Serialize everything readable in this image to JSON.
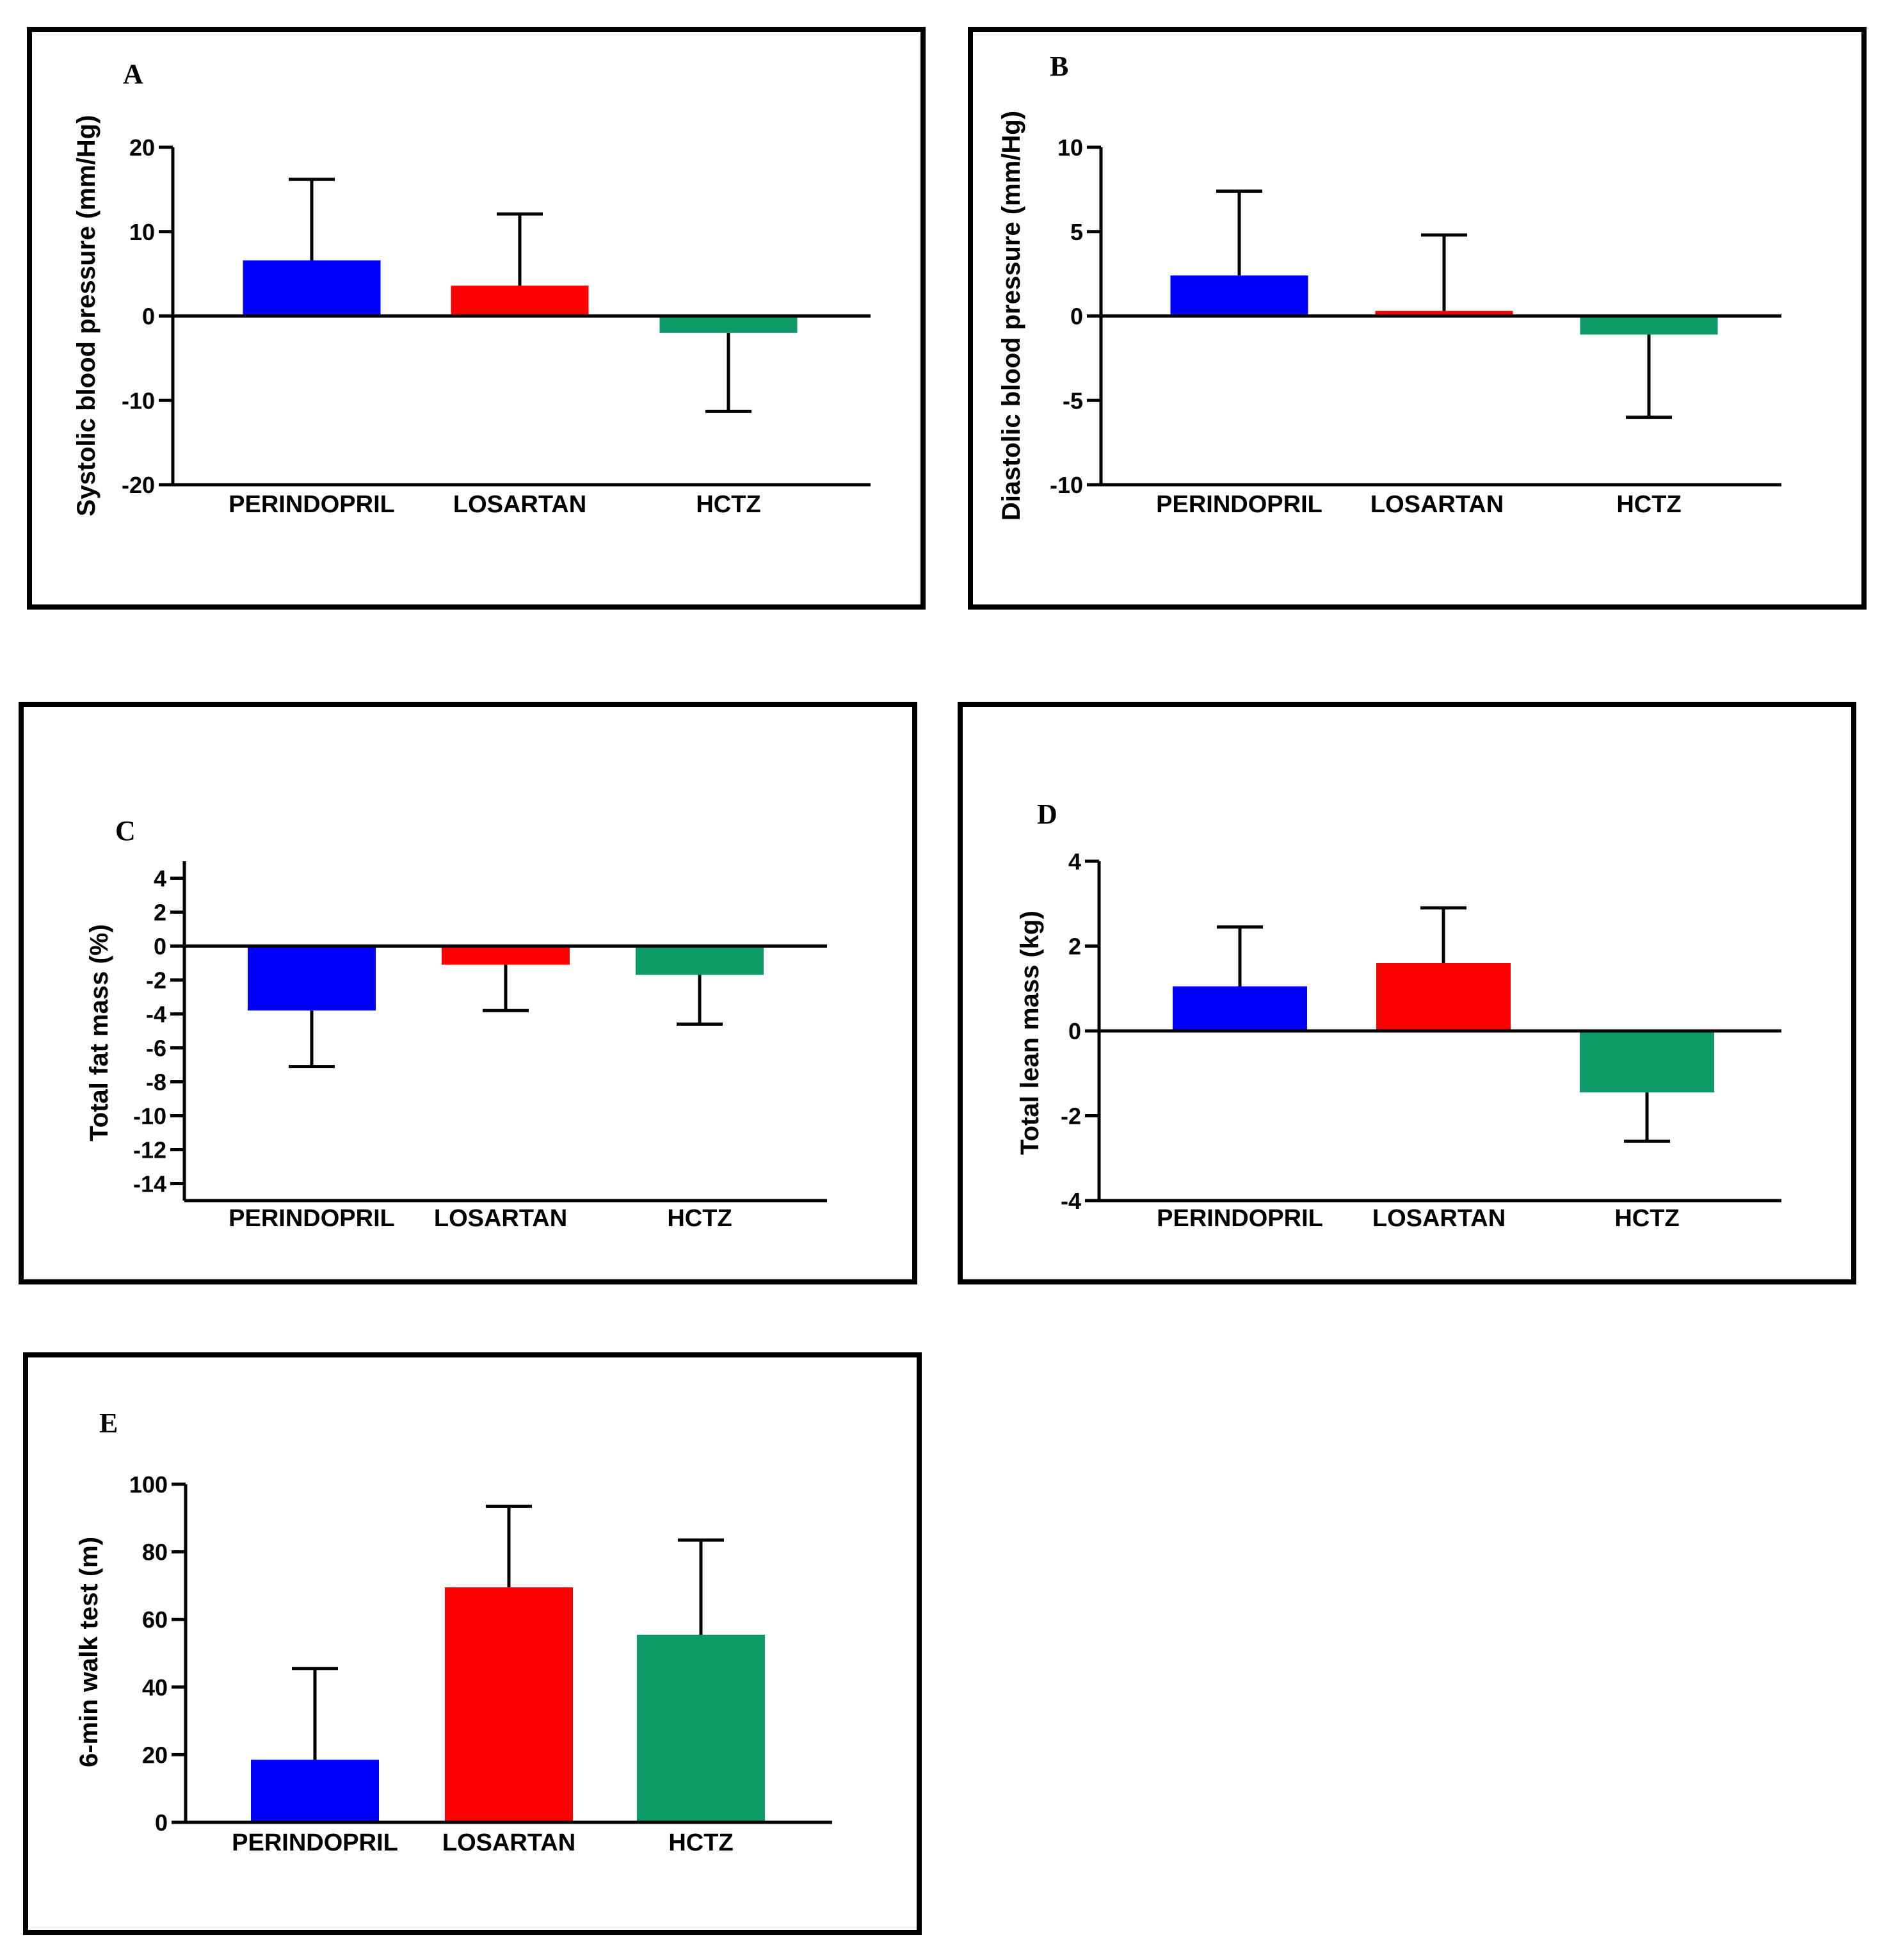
{
  "figure": {
    "colors": {
      "PERINDOPRIL": "#0000ff",
      "LOSARTAN": "#ff0000",
      "HCTZ": "#0c9a66",
      "axis": "#000000",
      "frame": "#000000"
    }
  },
  "chart_data": [
    {
      "panel": "A",
      "type": "bar",
      "ylabel": "Systolic blood pressure (mm/Hg)",
      "categories": [
        "PERINDOPRIL",
        "LOSARTAN",
        "HCTZ"
      ],
      "values": [
        6.6,
        3.6,
        -2.0
      ],
      "error_bars": [
        9.6,
        8.5,
        9.3
      ],
      "error_direction": "away from zero",
      "ylim": [
        -20,
        20
      ],
      "yticks": [
        -20,
        -10,
        0,
        10,
        20
      ],
      "ytick_labels": [
        "-20",
        "-10",
        "0",
        "10",
        "20"
      ]
    },
    {
      "panel": "B",
      "type": "bar",
      "ylabel": "Diastolic blood pressure (mm/Hg)",
      "categories": [
        "PERINDOPRIL",
        "LOSARTAN",
        "HCTZ"
      ],
      "values": [
        2.4,
        0.3,
        -1.1
      ],
      "error_bars": [
        5.0,
        4.5,
        4.9
      ],
      "error_direction": "away from zero",
      "ylim": [
        -10,
        10
      ],
      "yticks": [
        -10,
        -5,
        0,
        5,
        10
      ],
      "ytick_labels": [
        "-10",
        "-5",
        "0",
        "5",
        "10"
      ]
    },
    {
      "panel": "C",
      "type": "bar",
      "ylabel": "Total fat mass (%)",
      "categories": [
        "PERINDOPRIL",
        "LOSARTAN",
        "HCTZ"
      ],
      "values": [
        -3.8,
        -1.1,
        -1.7
      ],
      "error_bars": [
        3.3,
        2.7,
        2.9
      ],
      "error_direction": "away from zero",
      "ylim": [
        -15,
        5
      ],
      "yticks": [
        -14,
        -12,
        -10,
        -8,
        -6,
        -4,
        -2,
        0,
        2,
        4
      ],
      "ytick_labels": [
        "-14",
        "-12",
        "-10",
        "-8",
        "-6",
        "-4",
        "-2",
        "0",
        "2",
        "4"
      ]
    },
    {
      "panel": "D",
      "type": "bar",
      "ylabel": "Total lean mass (kg)",
      "categories": [
        "PERINDOPRIL",
        "LOSARTAN",
        "HCTZ"
      ],
      "values": [
        1.05,
        1.6,
        -1.45
      ],
      "error_bars": [
        1.4,
        1.3,
        1.15
      ],
      "error_direction": "away from zero",
      "ylim": [
        -4,
        4
      ],
      "yticks": [
        -4,
        -2,
        0,
        2,
        4
      ],
      "ytick_labels": [
        "-4",
        "-2",
        "0",
        "2",
        "4"
      ]
    },
    {
      "panel": "E",
      "type": "bar",
      "ylabel": "6-min walk test (m)",
      "categories": [
        "PERINDOPRIL",
        "LOSARTAN",
        "HCTZ"
      ],
      "values": [
        18.5,
        69.5,
        55.5
      ],
      "error_bars": [
        27,
        24,
        28
      ],
      "error_direction": "away from zero",
      "ylim": [
        0,
        100
      ],
      "yticks": [
        0,
        20,
        40,
        60,
        80,
        100
      ],
      "ytick_labels": [
        "0",
        "20",
        "40",
        "60",
        "80",
        "100"
      ]
    }
  ]
}
